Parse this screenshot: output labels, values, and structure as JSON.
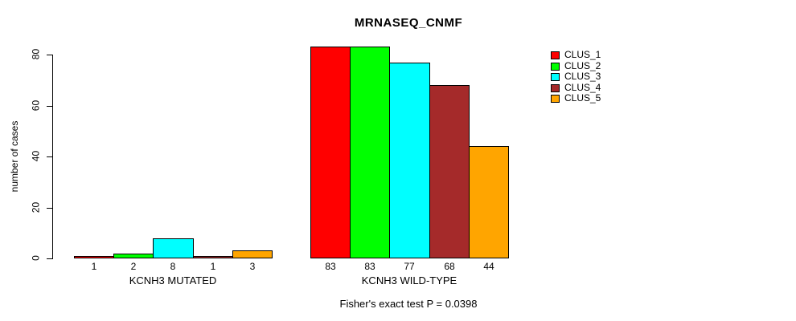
{
  "chart_data": {
    "type": "bar",
    "title": "MRNASEQ_CNMF",
    "ylabel": "number of cases",
    "ylim": [
      0,
      80
    ],
    "yticks": [
      0,
      20,
      40,
      60,
      80
    ],
    "grid": false,
    "series": [
      "CLUS_1",
      "CLUS_2",
      "CLUS_3",
      "CLUS_4",
      "CLUS_5"
    ],
    "colors": [
      "#FF0000",
      "#00FF00",
      "#00FFFF",
      "#A52A2A",
      "#FFA500"
    ],
    "groups": [
      {
        "label": "KCNH3 MUTATED",
        "values": [
          1,
          2,
          8,
          1,
          3
        ]
      },
      {
        "label": "KCNH3 WILD-TYPE",
        "values": [
          83,
          83,
          77,
          68,
          44
        ]
      }
    ],
    "legend": {
      "position": "right",
      "entries": [
        {
          "label": "CLUS_1",
          "color": "#FF0000"
        },
        {
          "label": "CLUS_2",
          "color": "#00FF00"
        },
        {
          "label": "CLUS_3",
          "color": "#00FFFF"
        },
        {
          "label": "CLUS_4",
          "color": "#A52A2A"
        },
        {
          "label": "CLUS_5",
          "color": "#FFA500"
        }
      ]
    },
    "annotation": "Fisher's exact test P = 0.0398"
  }
}
